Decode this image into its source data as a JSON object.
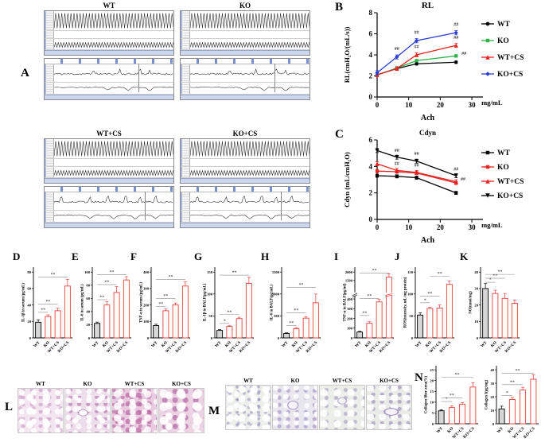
{
  "letters": {
    "A": "A",
    "B": "B",
    "C": "C",
    "D": "D",
    "E": "E",
    "F": "F",
    "G": "G",
    "H": "H",
    "I": "I",
    "J": "J",
    "K": "K",
    "L": "L",
    "M": "M",
    "N": "N"
  },
  "groups": [
    "WT",
    "KO",
    "WT+CS",
    "KO+CS"
  ],
  "panel_a": {
    "titles": [
      "WT",
      "KO",
      "WT+CS",
      "KO+CS"
    ]
  },
  "colors": {
    "red": "#e8413c",
    "green": "#2db34a",
    "blue": "#2a3cdb",
    "black": "#000000",
    "bar_wt_fill": "#d6d6d6"
  },
  "chart_data": [
    {
      "id": "B",
      "type": "line",
      "title": "RL",
      "ylabel": "RL(cmH₂O/(mL/s))",
      "xlabel": "Ach",
      "x_unit": "mg/mL",
      "xlim": [
        0,
        32
      ],
      "ylim": [
        0,
        8
      ],
      "xticks": [
        0,
        10,
        20,
        30
      ],
      "yticks": [
        0,
        2,
        4,
        6,
        8
      ],
      "x": [
        0,
        6.25,
        12.5,
        25
      ],
      "series": [
        {
          "name": "WT",
          "color": "#000000",
          "marker": "circle",
          "err": 0.12,
          "values": [
            2.1,
            2.7,
            3.15,
            3.3
          ]
        },
        {
          "name": "KO",
          "color": "#2db34a",
          "marker": "square",
          "err": 0.12,
          "values": [
            2.1,
            2.75,
            3.45,
            3.9
          ]
        },
        {
          "name": "WT+CS",
          "color": "#e8221f",
          "marker": "triangle",
          "err": 0.18,
          "values": [
            2.1,
            2.7,
            4.0,
            4.9
          ]
        },
        {
          "name": "KO+CS",
          "color": "#2a3cdb",
          "marker": "diamond",
          "err": 0.2,
          "values": [
            2.3,
            3.8,
            5.35,
            6.1
          ]
        }
      ],
      "annotations": [
        {
          "x": 6.25,
          "y": 4.45,
          "text": "##"
        },
        {
          "x": 12.5,
          "y": 6.0,
          "text": "##"
        },
        {
          "x": 12.5,
          "y": 4.65,
          "text": "##"
        },
        {
          "x": 25,
          "y": 6.75,
          "text": "##"
        },
        {
          "x": 25,
          "y": 5.5,
          "text": "##"
        },
        {
          "x": 27.5,
          "y": 4.0,
          "text": "##"
        }
      ]
    },
    {
      "id": "C",
      "type": "line",
      "title": "Cdyn",
      "ylabel": "Cdyn (mL/cmH₂O)",
      "xlabel": "Ach",
      "x_unit": "mg/mL",
      "xlim": [
        0,
        32
      ],
      "ylim": [
        0,
        6
      ],
      "xticks": [
        0,
        10,
        20,
        30
      ],
      "yticks": [
        0,
        2,
        4,
        6
      ],
      "x": [
        0,
        6.25,
        12.5,
        25
      ],
      "series": [
        {
          "name": "WT",
          "color": "#000000",
          "marker": "square",
          "err": 0.12,
          "values": [
            3.3,
            3.25,
            3.15,
            2.0
          ]
        },
        {
          "name": "KO",
          "color": "#e8221f",
          "marker": "square",
          "err": 0.12,
          "values": [
            3.65,
            3.6,
            3.5,
            2.75
          ]
        },
        {
          "name": "WT+CS",
          "color": "#e8221f",
          "marker": "triangle",
          "err": 0.15,
          "values": [
            4.2,
            3.7,
            3.55,
            2.85
          ]
        },
        {
          "name": "KO+CS",
          "color": "#000000",
          "marker": "tridown",
          "err": 0.15,
          "values": [
            5.2,
            4.7,
            4.4,
            3.3
          ]
        }
      ],
      "annotations": [
        {
          "x": 6.25,
          "y": 5.1,
          "text": "##"
        },
        {
          "x": 6.25,
          "y": 4.1,
          "text": "##"
        },
        {
          "x": 12.5,
          "y": 4.85,
          "text": "##"
        },
        {
          "x": 12.5,
          "y": 4.0,
          "text": "##"
        },
        {
          "x": 25,
          "y": 3.7,
          "text": "##"
        },
        {
          "x": 27.2,
          "y": 2.95,
          "text": "##"
        }
      ]
    },
    {
      "id": "D",
      "type": "bar",
      "ylabel": "IL-1β in serum (pg/mL)",
      "categories": [
        "WT",
        "KO",
        "WT+CS",
        "KO+CS"
      ],
      "ymax": 80,
      "yticks": [
        0,
        20,
        40,
        60,
        80
      ],
      "values": [
        19,
        26,
        33,
        63
      ],
      "errors": [
        3,
        2,
        3,
        8
      ],
      "sig": [
        {
          "a": 0,
          "b": 1,
          "y": 31,
          "label": "**"
        },
        {
          "a": 0,
          "b": 2,
          "y": 41,
          "label": "**"
        },
        {
          "a": 0,
          "b": 3,
          "y": 74,
          "label": "**"
        }
      ]
    },
    {
      "id": "E",
      "type": "bar",
      "ylabel": "IL-6 in serum (pg/mL)",
      "categories": [
        "WT",
        "KO",
        "WT+CS",
        "KO+CS"
      ],
      "ymax": 100,
      "yticks": [
        0,
        20,
        40,
        60,
        80,
        100
      ],
      "values": [
        22,
        50,
        69,
        88
      ],
      "errors": [
        2,
        5,
        9,
        5
      ],
      "sig": [
        {
          "a": 0,
          "b": 1,
          "y": 58,
          "label": "**"
        },
        {
          "a": 0,
          "b": 2,
          "y": 81,
          "label": "**"
        },
        {
          "a": 0,
          "b": 3,
          "y": 96,
          "label": "**"
        }
      ]
    },
    {
      "id": "F",
      "type": "bar",
      "ylabel": "TNF-α in serum (pg/mL)",
      "categories": [
        "WT",
        "KO",
        "WT+CS",
        "KO+CS"
      ],
      "ymax": 400,
      "yticks": [
        0,
        100,
        200,
        300,
        400
      ],
      "values": [
        75,
        165,
        200,
        315
      ],
      "errors": [
        8,
        10,
        12,
        25
      ],
      "sig": [
        {
          "a": 0,
          "b": 1,
          "y": 190,
          "label": "**"
        },
        {
          "a": 0,
          "b": 2,
          "y": 240,
          "label": "**"
        },
        {
          "a": 0,
          "b": 3,
          "y": 355,
          "label": "**"
        }
      ]
    },
    {
      "id": "G",
      "type": "bar",
      "ylabel": "IL-1β in BALF(pg/mL)",
      "categories": [
        "WT",
        "KO",
        "WT+CS",
        "KO+CS"
      ],
      "ymax": 150,
      "yticks": [
        0,
        50,
        100,
        150
      ],
      "values": [
        17,
        26,
        44,
        124
      ],
      "errors": [
        2,
        2,
        3,
        14
      ],
      "sig": [
        {
          "a": 0,
          "b": 1,
          "y": 33,
          "label": "*"
        },
        {
          "a": 0,
          "b": 2,
          "y": 53,
          "label": "**"
        },
        {
          "a": 0,
          "b": 3,
          "y": 143,
          "label": "**"
        }
      ]
    },
    {
      "id": "H",
      "type": "bar",
      "ylabel": "IL-6 in BALF(pg/mL)",
      "categories": [
        "WT",
        "KO",
        "WT+CS",
        "KO+CS"
      ],
      "ymax": 1500,
      "yticks": [
        0,
        500,
        1000,
        1500
      ],
      "values": [
        100,
        210,
        450,
        800
      ],
      "errors": [
        15,
        25,
        35,
        200
      ],
      "sig": [
        {
          "a": 0,
          "b": 1,
          "y": 280,
          "label": "**"
        },
        {
          "a": 0,
          "b": 2,
          "y": 570,
          "label": "**"
        },
        {
          "a": 0,
          "b": 3,
          "y": 1150,
          "label": "**"
        }
      ]
    },
    {
      "id": "I",
      "type": "bar",
      "ylabel": "TNF-α in BALF(pg/ml)",
      "categories": [
        "WT",
        "KO",
        "WT+CS",
        "KO+CS"
      ],
      "ymax": 2000,
      "yticks": [
        0,
        100,
        200,
        300,
        400,
        1500,
        2000
      ],
      "stops": [
        [
          0,
          0
        ],
        [
          400,
          0.55
        ],
        [
          2000,
          0.93
        ]
      ],
      "break_frac": 0.62,
      "break_above": 450,
      "values": [
        60,
        150,
        370,
        1700
      ],
      "errors": [
        8,
        15,
        25,
        200
      ],
      "sig": [
        {
          "a": 0,
          "b": 1,
          "y": 230,
          "label": "**"
        },
        {
          "a": 0,
          "b": 2,
          "y": 430,
          "label": "**"
        },
        {
          "a": 0,
          "b": 3,
          "y": 1950,
          "label": "**"
        }
      ]
    },
    {
      "id": "J",
      "type": "bar",
      "ylabel": "ROS(intensity, mL/mg protein)",
      "categories": [
        "WT",
        "KO",
        "WT+CS",
        "KO+CS"
      ],
      "ymax": 150,
      "yticks": [
        0,
        50,
        100,
        150
      ],
      "values": [
        52,
        67,
        68,
        122
      ],
      "errors": [
        5,
        3,
        7,
        8
      ],
      "sig": [
        {
          "a": 0,
          "b": 1,
          "y": 80,
          "label": "*"
        },
        {
          "a": 0,
          "b": 2,
          "y": 95,
          "label": "**"
        },
        {
          "a": 1,
          "b": 3,
          "y": 140,
          "label": "**"
        }
      ]
    },
    {
      "id": "K",
      "type": "bar",
      "ylabel": "NO(nmol/mg)",
      "categories": [
        "WT",
        "KO",
        "WT+CS",
        "KO+CS"
      ],
      "ymax": 40,
      "yticks": [
        0,
        10,
        20,
        30,
        40
      ],
      "values": [
        30,
        27,
        24,
        21
      ],
      "errors": [
        3,
        2,
        3,
        2
      ],
      "sig": [
        {
          "a": 0,
          "b": 1,
          "y": 33.8,
          "label": "*"
        },
        {
          "a": 0,
          "b": 2,
          "y": 36.2,
          "label": "**"
        },
        {
          "a": 0,
          "b": 3,
          "y": 38.6,
          "label": "**"
        }
      ]
    },
    {
      "id": "N1",
      "type": "bar",
      "ylabel": "Collagen fiber area(%)",
      "categories": [
        "WT",
        "KO",
        "WT+CS",
        "KO+CS"
      ],
      "ymax": 25,
      "yticks": [
        0,
        5,
        10,
        15,
        20,
        25
      ],
      "values": [
        6,
        7.5,
        9,
        17
      ],
      "errors": [
        0.5,
        0.8,
        0.8,
        2
      ],
      "sig": [
        {
          "a": 0,
          "b": 1,
          "y": 10.3,
          "label": "*"
        },
        {
          "a": 0,
          "b": 2,
          "y": 12,
          "label": "**"
        },
        {
          "a": 0,
          "b": 3,
          "y": 21.5,
          "label": "**"
        }
      ]
    },
    {
      "id": "N2",
      "type": "bar",
      "ylabel": "Collagen I(μg/mg)",
      "categories": [
        "WT",
        "KO",
        "WT+CS",
        "KO+CS"
      ],
      "ymax": 40,
      "yticks": [
        0,
        10,
        20,
        30,
        40
      ],
      "values": [
        11,
        18,
        25,
        33
      ],
      "errors": [
        2,
        1.5,
        2,
        3.5
      ],
      "sig": [
        {
          "a": 0,
          "b": 1,
          "y": 21,
          "label": "*"
        },
        {
          "a": 0,
          "b": 2,
          "y": 29,
          "label": "**"
        },
        {
          "a": 0,
          "b": 3,
          "y": 37.5,
          "label": "**"
        }
      ]
    }
  ]
}
